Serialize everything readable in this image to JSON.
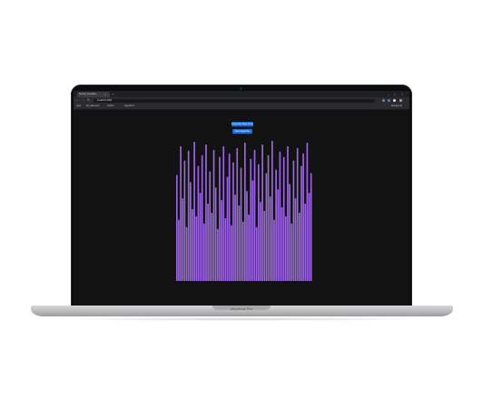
{
  "device": {
    "label": "MacBook Pro"
  },
  "browser": {
    "tab_title": "Sorting Visualizer",
    "tab_close": "×",
    "new_tab": "+",
    "window_controls": [
      "–",
      "□",
      "×"
    ],
    "nav": {
      "back": "←",
      "forward": "→",
      "reload": "↻"
    },
    "address": "localhost:3000",
    "bookmarks": [
      "Apps",
      "My Classroom",
      "GitHub",
      "Algorithms"
    ],
    "reading_list": "Reading list"
  },
  "page": {
    "buttons": {
      "generate": "Generate New Array",
      "sort": "Start Algorithm"
    },
    "bar_color": "#9b66e0",
    "background": "#121213"
  },
  "chart_data": {
    "type": "bar",
    "ylim": [
      0,
      160
    ],
    "values": [
      118,
      68,
      150,
      92,
      134,
      60,
      145,
      110,
      80,
      155,
      72,
      128,
      98,
      140,
      64,
      152,
      86,
      122,
      76,
      146,
      104,
      58,
      138,
      90,
      150,
      70,
      116,
      142,
      62,
      132,
      96,
      148,
      84,
      126,
      66,
      154,
      100,
      74,
      136,
      112,
      146,
      60,
      130,
      88,
      152,
      78,
      120,
      140,
      94,
      156,
      68,
      124,
      102,
      144,
      82,
      138,
      72,
      150,
      108,
      64,
      134,
      92,
      148,
      76,
      128,
      142,
      86,
      154,
      98,
      120
    ]
  }
}
